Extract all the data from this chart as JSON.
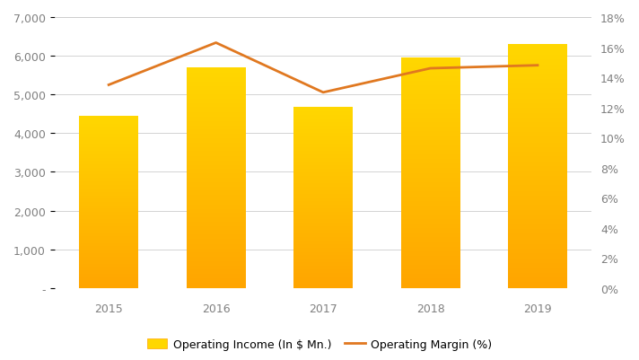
{
  "years": [
    "2015",
    "2016",
    "2017",
    "2018",
    "2019"
  ],
  "operating_income": [
    4450,
    5700,
    4680,
    5950,
    6300
  ],
  "operating_margin": [
    13.5,
    16.3,
    13.0,
    14.6,
    14.8
  ],
  "bar_color_top": "#FFD700",
  "bar_color_bottom": "#FFA500",
  "line_color": "#E07820",
  "background_color": "#FFFFFF",
  "left_ylim": [
    0,
    7000
  ],
  "left_yticks": [
    0,
    1000,
    2000,
    3000,
    4000,
    5000,
    6000,
    7000
  ],
  "left_ytick_labels": [
    "-",
    "1,000",
    "2,000",
    "3,000",
    "4,000",
    "5,000",
    "6,000",
    "7,000"
  ],
  "right_ylim": [
    0,
    0.18
  ],
  "right_yticks": [
    0,
    0.02,
    0.04,
    0.06,
    0.08,
    0.1,
    0.12,
    0.14,
    0.16,
    0.18
  ],
  "right_ytick_labels": [
    "0%",
    "2%",
    "4%",
    "6%",
    "8%",
    "10%",
    "12%",
    "14%",
    "16%",
    "18%"
  ],
  "legend_bar_label": "Operating Income (In $ Mn.)",
  "legend_line_label": "Operating Margin (%)",
  "grid_color": "#CCCCCC",
  "label_color": "#808080",
  "figsize": [
    7.12,
    4.02
  ],
  "dpi": 100,
  "bar_width": 0.55
}
